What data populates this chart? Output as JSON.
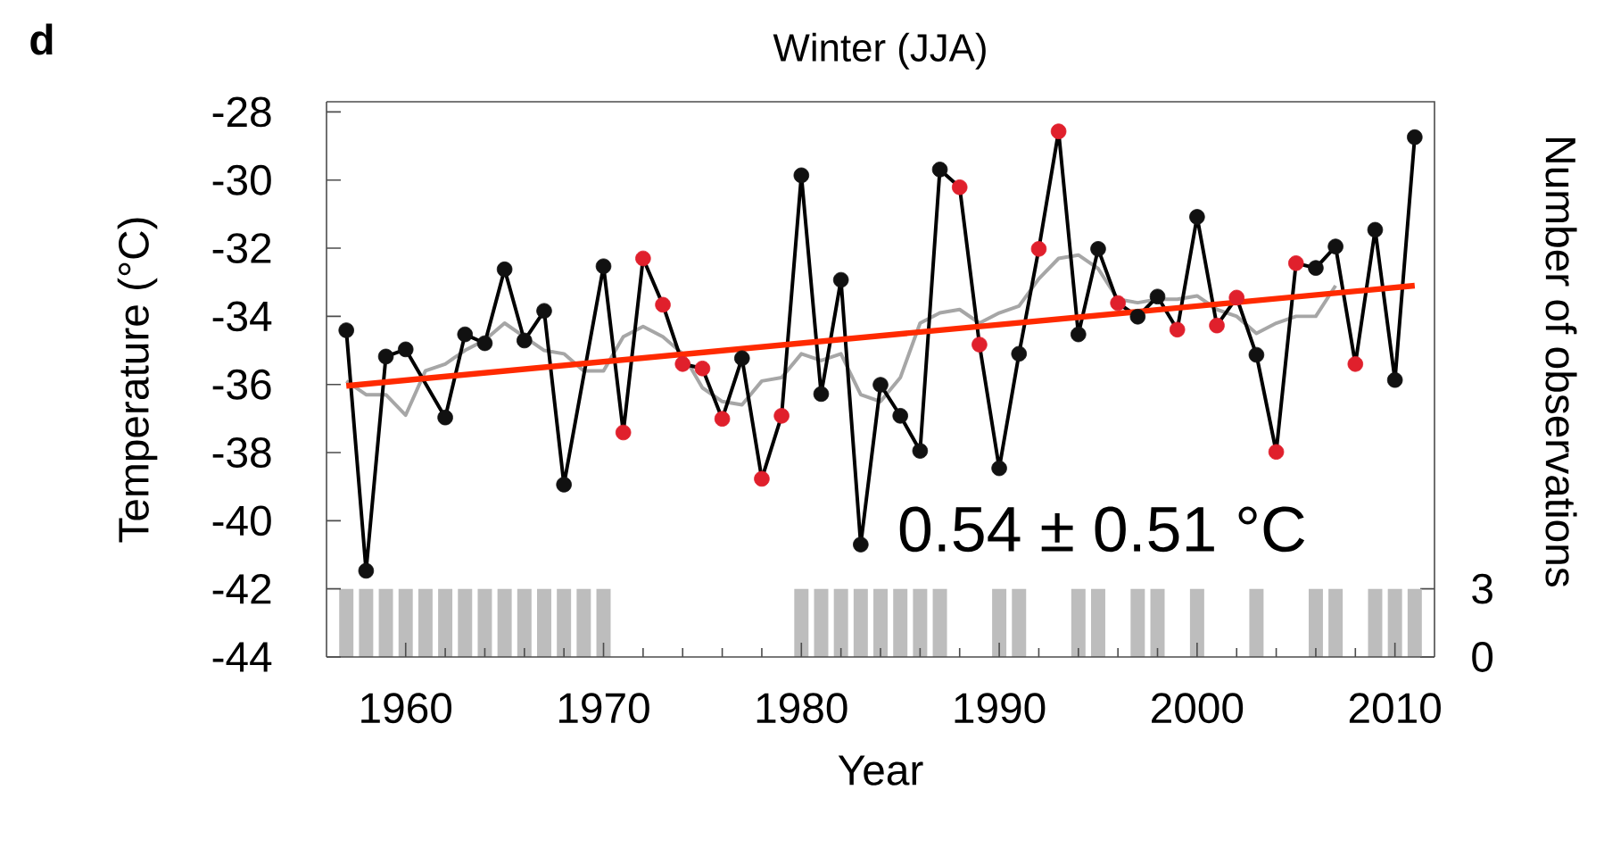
{
  "chart_data": {
    "type": "line",
    "title": "Winter (JJA)",
    "xlabel": "Year",
    "ylabel": "Temperature (°C)",
    "y2label": "Number of observations",
    "annotations": [
      "d",
      "0.54 ± 0.51 °C"
    ],
    "xlim": [
      1956,
      2012
    ],
    "xticks": [
      1960,
      1970,
      1980,
      1990,
      2000,
      2010
    ],
    "ylim": [
      -44,
      -27.7
    ],
    "yticks": [
      -44,
      -42,
      -40,
      -38,
      -36,
      -34,
      -32,
      -30,
      -28
    ],
    "y2lim": [
      0,
      24.45
    ],
    "y2ticks": [
      0,
      3
    ],
    "series": [
      {
        "type": "bar",
        "axis": "y2",
        "color": "#bdbdbd",
        "x": [
          1957,
          1958,
          1959,
          1960,
          1961,
          1962,
          1963,
          1964,
          1965,
          1966,
          1967,
          1968,
          1969,
          1970,
          1980,
          1981,
          1982,
          1983,
          1984,
          1985,
          1986,
          1987,
          1990,
          1991,
          1994,
          1995,
          1997,
          1998,
          2000,
          2003,
          2006,
          2007,
          2009,
          2010,
          2011
        ],
        "values": [
          3,
          3,
          3,
          3,
          3,
          3,
          3,
          3,
          3,
          3,
          3,
          3,
          3,
          3,
          3,
          3,
          3,
          3,
          3,
          3,
          3,
          3,
          3,
          3,
          3,
          3,
          3,
          3,
          3,
          3,
          3,
          3,
          3,
          3,
          3
        ]
      },
      {
        "color": "#a6a6a6",
        "x": [
          1957,
          1958,
          1959,
          1960,
          1961,
          1962,
          1963,
          1964,
          1965,
          1966,
          1967,
          1968,
          1969,
          1970,
          1971,
          1972,
          1973,
          1974,
          1975,
          1976,
          1977,
          1978,
          1979,
          1980,
          1981,
          1982,
          1983,
          1984,
          1985,
          1986,
          1987,
          1988,
          1989,
          1990,
          1991,
          1992,
          1993,
          1994,
          1995,
          1996,
          1997,
          1998,
          1999,
          2000,
          2001,
          2002,
          2003,
          2004,
          2005,
          2006,
          2007
        ],
        "values": [
          -35.9,
          -36.3,
          -36.3,
          -36.9,
          -35.6,
          -35.4,
          -35.0,
          -34.7,
          -34.2,
          -34.6,
          -35.0,
          -35.1,
          -35.6,
          -35.6,
          -34.6,
          -34.3,
          -34.6,
          -35.1,
          -36.1,
          -36.5,
          -36.6,
          -35.9,
          -35.8,
          -35.1,
          -35.3,
          -35.1,
          -36.3,
          -36.5,
          -35.8,
          -34.2,
          -33.9,
          -33.8,
          -34.2,
          -33.9,
          -33.7,
          -32.9,
          -32.3,
          -32.2,
          -32.6,
          -33.5,
          -33.6,
          -33.5,
          -33.5,
          -33.4,
          -33.8,
          -34.0,
          -34.5,
          -34.2,
          -34.0,
          -34.0,
          -33.1
        ]
      },
      {
        "color": "#000000",
        "marker": "circle",
        "x": [
          1957,
          1958,
          1959,
          1960,
          1962,
          1963,
          1964,
          1965,
          1966,
          1967,
          1968,
          1970,
          1971,
          1972,
          1973,
          1974,
          1975,
          1976,
          1977,
          1978,
          1979,
          1980,
          1981,
          1982,
          1983,
          1984,
          1985,
          1986,
          1987,
          1988,
          1989,
          1990,
          1991,
          1992,
          1993,
          1994,
          1995,
          1996,
          1997,
          1998,
          1999,
          2000,
          2001,
          2002,
          2003,
          2004,
          2005,
          2006,
          2007,
          2008,
          2009,
          2010,
          2011
        ],
        "values": [
          -34.41,
          -41.47,
          -35.18,
          -34.97,
          -36.97,
          -34.53,
          -34.79,
          -32.62,
          -34.71,
          -33.84,
          -38.94,
          -32.53,
          -37.41,
          -32.3,
          -33.66,
          -35.4,
          -35.53,
          -37.01,
          -35.23,
          -38.77,
          -36.92,
          -29.86,
          -36.28,
          -32.93,
          -40.7,
          -36.01,
          -36.92,
          -37.95,
          -29.69,
          -30.21,
          -34.83,
          -38.46,
          -35.1,
          -32.02,
          -28.57,
          -34.53,
          -32.02,
          -33.61,
          -34.01,
          -33.42,
          -34.39,
          -31.08,
          -34.27,
          -33.45,
          -35.13,
          -37.98,
          -32.44,
          -32.58,
          -31.95,
          -35.4,
          -31.46,
          -35.87,
          -28.74
        ],
        "colors": [
          "#111111",
          "#111111",
          "#111111",
          "#111111",
          "#111111",
          "#111111",
          "#111111",
          "#111111",
          "#111111",
          "#111111",
          "#111111",
          "#111111",
          "#e0202c",
          "#e0202c",
          "#e0202c",
          "#e0202c",
          "#e0202c",
          "#e0202c",
          "#111111",
          "#e0202c",
          "#e0202c",
          "#111111",
          "#111111",
          "#111111",
          "#111111",
          "#111111",
          "#111111",
          "#111111",
          "#111111",
          "#e0202c",
          "#e0202c",
          "#111111",
          "#111111",
          "#e0202c",
          "#e0202c",
          "#111111",
          "#111111",
          "#e0202c",
          "#111111",
          "#111111",
          "#e0202c",
          "#111111",
          "#e0202c",
          "#e0202c",
          "#111111",
          "#e0202c",
          "#e0202c",
          "#111111",
          "#111111",
          "#e0202c",
          "#111111",
          "#111111",
          "#111111"
        ]
      },
      {
        "color": "#ff2a00",
        "x": [
          1957,
          2011
        ],
        "values": [
          -36.04,
          -33.1
        ]
      }
    ]
  }
}
